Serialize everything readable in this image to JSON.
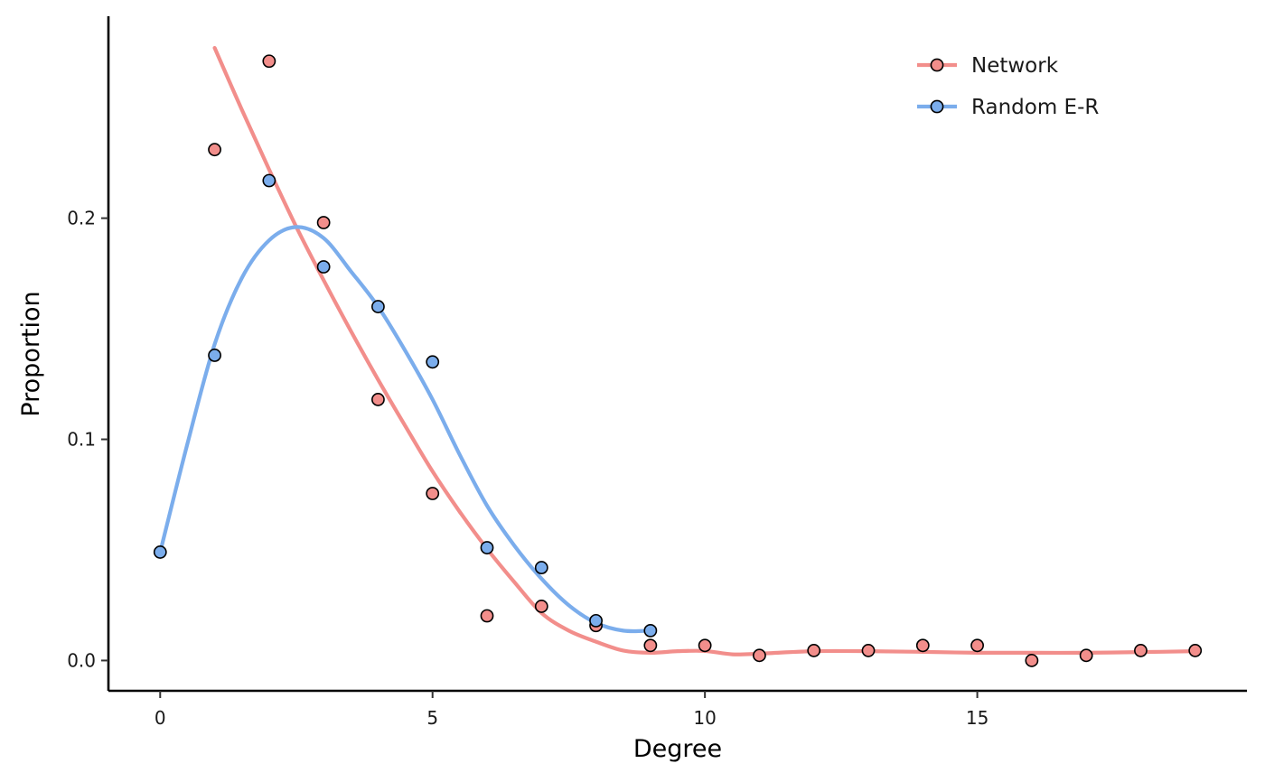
{
  "chart_data": {
    "type": "scatter",
    "xlabel": "Degree",
    "ylabel": "Proportion",
    "xlim": [
      -0.95,
      19.95
    ],
    "ylim": [
      -0.0137,
      0.2913
    ],
    "x_ticks": [
      0,
      5,
      10,
      15
    ],
    "x_tick_labels": [
      "0",
      "5",
      "10",
      "15"
    ],
    "y_ticks": [
      0.0,
      0.1,
      0.2
    ],
    "y_tick_labels": [
      "0.0",
      "0.1",
      "0.2"
    ],
    "grid": false,
    "legend_position": "top-right",
    "series": [
      {
        "name": "Network",
        "color": "#F28E8B",
        "points": [
          {
            "x": 1,
            "y": 0.231
          },
          {
            "x": 2,
            "y": 0.271
          },
          {
            "x": 3,
            "y": 0.198
          },
          {
            "x": 4,
            "y": 0.118
          },
          {
            "x": 5,
            "y": 0.0755
          },
          {
            "x": 6,
            "y": 0.0202
          },
          {
            "x": 7,
            "y": 0.0245
          },
          {
            "x": 8,
            "y": 0.0158
          },
          {
            "x": 9,
            "y": 0.0068
          },
          {
            "x": 10,
            "y": 0.0068
          },
          {
            "x": 11,
            "y": 0.0023
          },
          {
            "x": 12,
            "y": 0.0045
          },
          {
            "x": 13,
            "y": 0.0045
          },
          {
            "x": 14,
            "y": 0.0068
          },
          {
            "x": 15,
            "y": 0.0068
          },
          {
            "x": 16,
            "y": 0.0
          },
          {
            "x": 17,
            "y": 0.0023
          },
          {
            "x": 18,
            "y": 0.0045
          },
          {
            "x": 19,
            "y": 0.0045
          }
        ],
        "smooth": [
          [
            1.0,
            0.277
          ],
          [
            1.5,
            0.249
          ],
          [
            2.0,
            0.222
          ],
          [
            2.5,
            0.196
          ],
          [
            3.0,
            0.172
          ],
          [
            3.5,
            0.149
          ],
          [
            4.0,
            0.127
          ],
          [
            4.5,
            0.106
          ],
          [
            5.0,
            0.0855
          ],
          [
            5.5,
            0.0672
          ],
          [
            6.0,
            0.0505
          ],
          [
            6.5,
            0.0355
          ],
          [
            7.0,
            0.0215
          ],
          [
            7.5,
            0.0135
          ],
          [
            8.0,
            0.0085
          ],
          [
            8.5,
            0.0045
          ],
          [
            9.0,
            0.0035
          ],
          [
            9.5,
            0.0042
          ],
          [
            10.0,
            0.0043
          ],
          [
            10.5,
            0.0028
          ],
          [
            11.0,
            0.0031
          ],
          [
            12.0,
            0.0042
          ],
          [
            13.0,
            0.0042
          ],
          [
            14.0,
            0.0039
          ],
          [
            15.0,
            0.0035
          ],
          [
            16.0,
            0.0035
          ],
          [
            17.0,
            0.0035
          ],
          [
            18.0,
            0.0038
          ],
          [
            19.0,
            0.0042
          ]
        ]
      },
      {
        "name": "Random E-R",
        "color": "#7BADEC",
        "points": [
          {
            "x": 0,
            "y": 0.049
          },
          {
            "x": 1,
            "y": 0.138
          },
          {
            "x": 2,
            "y": 0.217
          },
          {
            "x": 3,
            "y": 0.178
          },
          {
            "x": 4,
            "y": 0.16
          },
          {
            "x": 5,
            "y": 0.135
          },
          {
            "x": 6,
            "y": 0.051
          },
          {
            "x": 7,
            "y": 0.042
          },
          {
            "x": 8,
            "y": 0.018
          },
          {
            "x": 9,
            "y": 0.0135
          }
        ],
        "smooth": [
          [
            0.0,
            0.049
          ],
          [
            0.5,
            0.098
          ],
          [
            1.0,
            0.143
          ],
          [
            1.5,
            0.173
          ],
          [
            2.0,
            0.19
          ],
          [
            2.5,
            0.196
          ],
          [
            3.0,
            0.191
          ],
          [
            3.5,
            0.176
          ],
          [
            4.0,
            0.16
          ],
          [
            4.5,
            0.14
          ],
          [
            5.0,
            0.118
          ],
          [
            5.5,
            0.093
          ],
          [
            6.0,
            0.07
          ],
          [
            6.5,
            0.052
          ],
          [
            7.0,
            0.037
          ],
          [
            7.5,
            0.025
          ],
          [
            8.0,
            0.017
          ],
          [
            8.5,
            0.0135
          ],
          [
            9.0,
            0.0135
          ]
        ]
      }
    ]
  }
}
